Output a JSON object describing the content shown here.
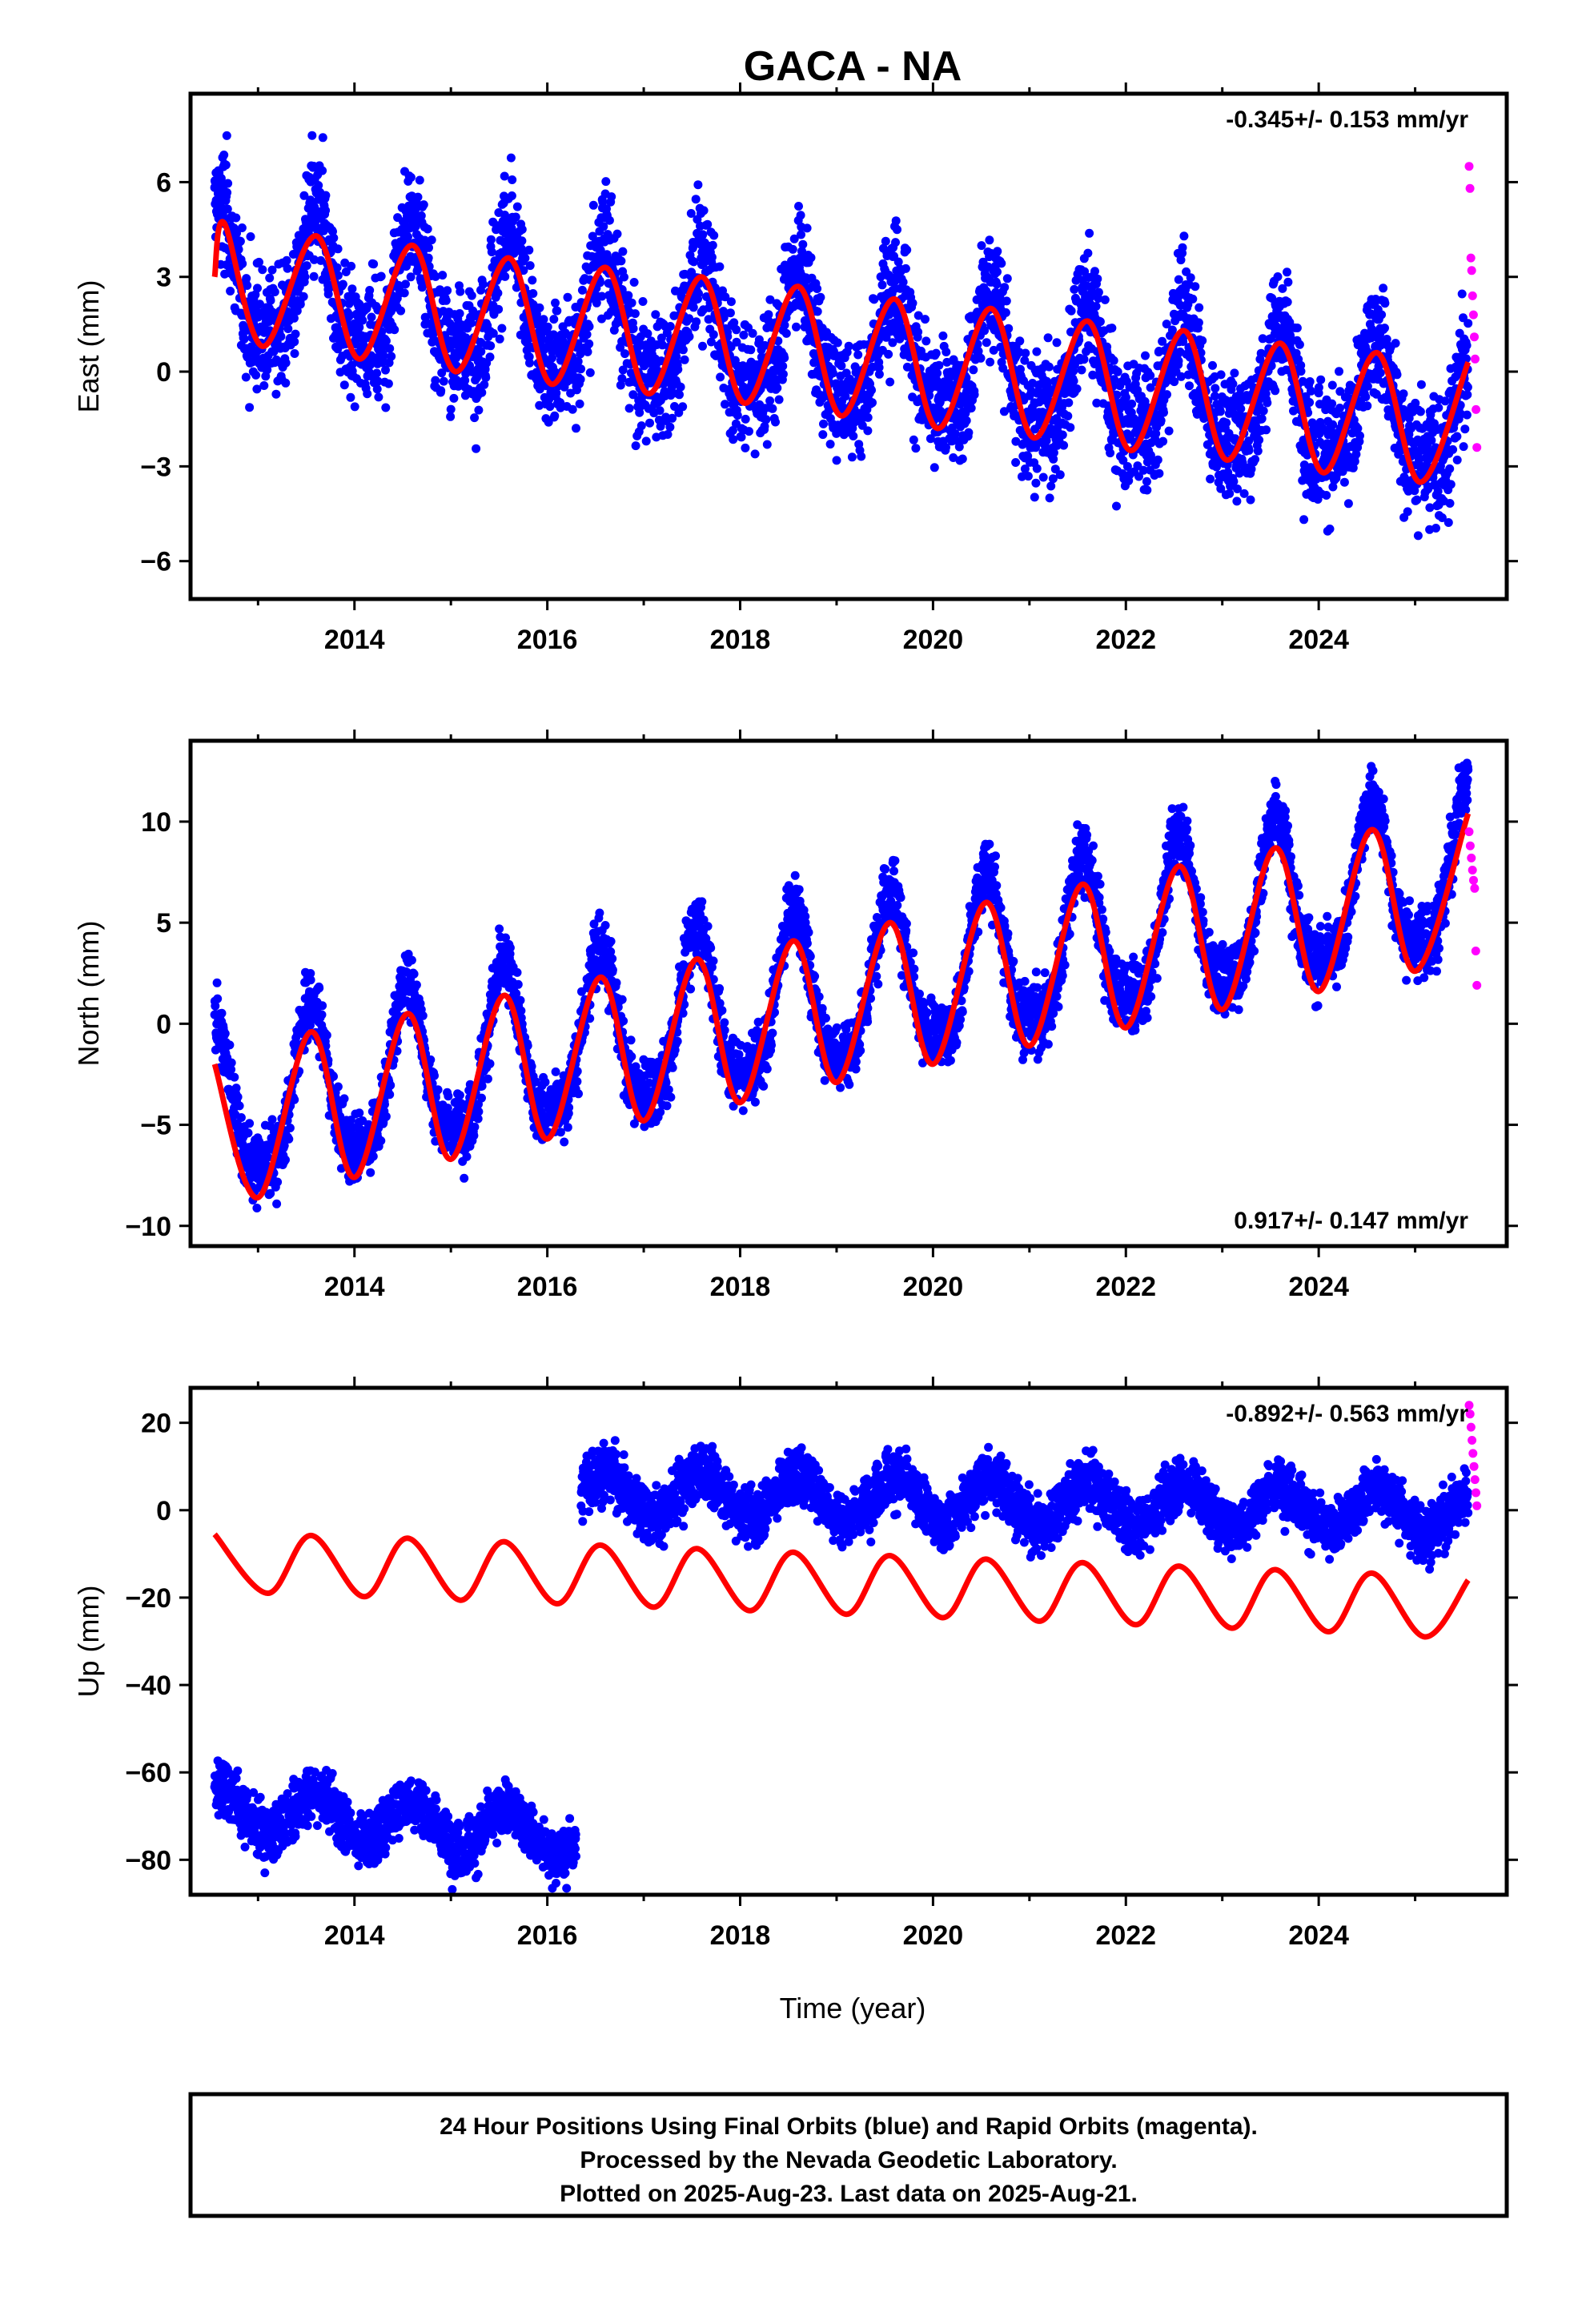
{
  "title": "GACA - NA",
  "xlabel": "Time (year)",
  "footer": {
    "line1": "24 Hour Positions Using Final Orbits (blue) and Rapid Orbits (magenta).",
    "line2": "Processed by the Nevada Geodetic Laboratory.",
    "line3": "Plotted on 2025-Aug-23. Last data on 2025-Aug-21."
  },
  "colors": {
    "final": "#0000ff",
    "rapid": "#ff00ff",
    "model": "#ff0000",
    "frame": "#000000"
  },
  "chart_data": [
    {
      "type": "scatter",
      "component": "east",
      "ylabel": "East (mm)",
      "rate": "-0.345+/- 0.153 mm/yr",
      "rate_position": "top-right",
      "xlim": [
        2012.3,
        2025.95
      ],
      "ylim": [
        -7.2,
        8.8
      ],
      "x_ticks": [
        2014,
        2016,
        2018,
        2020,
        2022,
        2024
      ],
      "x_tick_labels": [
        "2014",
        "2016",
        "2018",
        "2020",
        "2022",
        "2024"
      ],
      "y_ticks": [
        -6,
        -3,
        0,
        3,
        6
      ],
      "y_tick_labels": [
        "−6",
        "−3",
        "0",
        "3",
        "6"
      ],
      "final_span": [
        2012.55,
        2025.55
      ],
      "rapid_span": [
        2025.56,
        2025.64
      ],
      "rapid_values": [
        6.5,
        5.8,
        3.6,
        3.2,
        2.4,
        1.8,
        1.1,
        0.4,
        -1.2,
        -2.4
      ],
      "model": {
        "offset": 2.9,
        "trend": -0.345,
        "annual_amp": 1.9,
        "annual_peak": 0.6,
        "semiannual_amp": 0.6,
        "semiannual_peak": 0.6,
        "noise": 1.4
      },
      "model_series": [
        {
          "x": 2012.55,
          "y": 3.0
        },
        {
          "x": 2012.65,
          "y": 4.7
        },
        {
          "x": 2013.05,
          "y": 0.8
        },
        {
          "x": 2013.6,
          "y": 4.3
        },
        {
          "x": 2014.05,
          "y": 0.4
        },
        {
          "x": 2014.6,
          "y": 4.0
        },
        {
          "x": 2015.05,
          "y": 0.0
        },
        {
          "x": 2015.6,
          "y": 3.6
        },
        {
          "x": 2016.05,
          "y": -0.4
        },
        {
          "x": 2016.6,
          "y": 3.3
        },
        {
          "x": 2017.05,
          "y": -0.7
        },
        {
          "x": 2017.6,
          "y": 3.0
        },
        {
          "x": 2018.05,
          "y": -1.0
        },
        {
          "x": 2018.6,
          "y": 2.7
        },
        {
          "x": 2019.05,
          "y": -1.4
        },
        {
          "x": 2019.6,
          "y": 2.3
        },
        {
          "x": 2020.05,
          "y": -1.8
        },
        {
          "x": 2020.6,
          "y": 2.0
        },
        {
          "x": 2021.05,
          "y": -2.1
        },
        {
          "x": 2021.6,
          "y": 1.6
        },
        {
          "x": 2022.05,
          "y": -2.5
        },
        {
          "x": 2022.6,
          "y": 1.3
        },
        {
          "x": 2023.05,
          "y": -2.8
        },
        {
          "x": 2023.6,
          "y": 0.9
        },
        {
          "x": 2024.05,
          "y": -3.2
        },
        {
          "x": 2024.6,
          "y": 0.6
        },
        {
          "x": 2025.05,
          "y": -3.5
        },
        {
          "x": 2025.55,
          "y": 0.3
        }
      ]
    },
    {
      "type": "scatter",
      "component": "north",
      "ylabel": "North (mm)",
      "rate": "0.917+/- 0.147 mm/yr",
      "rate_position": "bottom-right",
      "xlim": [
        2012.3,
        2025.95
      ],
      "ylim": [
        -11,
        14
      ],
      "x_ticks": [
        2014,
        2016,
        2018,
        2020,
        2022,
        2024
      ],
      "x_tick_labels": [
        "2014",
        "2016",
        "2018",
        "2020",
        "2022",
        "2024"
      ],
      "y_ticks": [
        -10,
        -5,
        0,
        5,
        10
      ],
      "y_tick_labels": [
        "−10",
        "−5",
        "0",
        "5",
        "10"
      ],
      "final_span": [
        2012.55,
        2025.55
      ],
      "rapid_span": [
        2025.56,
        2025.64
      ],
      "rapid_values": [
        9.5,
        8.8,
        8.2,
        7.6,
        7.1,
        6.7,
        3.6,
        1.9
      ],
      "model": {
        "offset": -4.5,
        "trend": 0.917,
        "annual_amp": 3.8,
        "annual_peak": 0.55,
        "semiannual_amp": 0.9,
        "semiannual_peak": 0.55,
        "noise": 1.2
      },
      "model_series": [
        {
          "x": 2012.55,
          "y": -2.0
        },
        {
          "x": 2013.0,
          "y": -8.6
        },
        {
          "x": 2013.55,
          "y": -0.4
        },
        {
          "x": 2014.0,
          "y": -7.6
        },
        {
          "x": 2014.55,
          "y": 0.5
        },
        {
          "x": 2015.0,
          "y": -6.7
        },
        {
          "x": 2015.55,
          "y": 1.4
        },
        {
          "x": 2016.0,
          "y": -5.7
        },
        {
          "x": 2016.55,
          "y": 2.3
        },
        {
          "x": 2017.0,
          "y": -4.8
        },
        {
          "x": 2017.55,
          "y": 3.2
        },
        {
          "x": 2018.0,
          "y": -3.9
        },
        {
          "x": 2018.55,
          "y": 4.1
        },
        {
          "x": 2019.0,
          "y": -2.9
        },
        {
          "x": 2019.55,
          "y": 5.0
        },
        {
          "x": 2020.0,
          "y": -2.0
        },
        {
          "x": 2020.55,
          "y": 6.0
        },
        {
          "x": 2021.0,
          "y": -1.1
        },
        {
          "x": 2021.55,
          "y": 6.9
        },
        {
          "x": 2022.0,
          "y": -0.2
        },
        {
          "x": 2022.55,
          "y": 7.8
        },
        {
          "x": 2023.0,
          "y": 0.7
        },
        {
          "x": 2023.55,
          "y": 8.7
        },
        {
          "x": 2024.0,
          "y": 1.6
        },
        {
          "x": 2024.55,
          "y": 9.6
        },
        {
          "x": 2025.0,
          "y": 2.6
        },
        {
          "x": 2025.55,
          "y": 10.4
        }
      ]
    },
    {
      "type": "scatter",
      "component": "up",
      "ylabel": "Up (mm)",
      "rate": "-0.892+/- 0.563 mm/yr",
      "rate_position": "top-right",
      "xlim": [
        2012.3,
        2025.95
      ],
      "ylim": [
        -88,
        28
      ],
      "x_ticks": [
        2014,
        2016,
        2018,
        2020,
        2022,
        2024
      ],
      "x_tick_labels": [
        "2014",
        "2016",
        "2018",
        "2020",
        "2022",
        "2024"
      ],
      "y_ticks": [
        -80,
        -60,
        -40,
        -20,
        0,
        20
      ],
      "y_tick_labels": [
        "−80",
        "−60",
        "−40",
        "−20",
        "0",
        "20"
      ],
      "final_segments": [
        {
          "span": [
            2012.55,
            2016.3
          ],
          "offset": -68,
          "trend": -1.8,
          "annual_amp": 5,
          "annual_peak": 0.6,
          "noise": 4.5
        },
        {
          "span": [
            2016.35,
            2025.55
          ],
          "offset": 6,
          "trend": -0.5,
          "annual_amp": 5,
          "annual_peak": 0.6,
          "noise": 4.5
        }
      ],
      "rapid_span": [
        2025.56,
        2025.64
      ],
      "rapid_values": [
        24,
        22,
        19,
        16,
        13,
        10,
        7,
        4,
        1
      ],
      "model_series": [
        {
          "x": 2012.55,
          "y": -5.5
        },
        {
          "x": 2013.1,
          "y": -19.0
        },
        {
          "x": 2013.55,
          "y": -5.8
        },
        {
          "x": 2014.1,
          "y": -19.8
        },
        {
          "x": 2014.55,
          "y": -6.4
        },
        {
          "x": 2015.1,
          "y": -20.6
        },
        {
          "x": 2015.55,
          "y": -7.2
        },
        {
          "x": 2016.1,
          "y": -21.4
        },
        {
          "x": 2016.55,
          "y": -8.0
        },
        {
          "x": 2017.1,
          "y": -22.2
        },
        {
          "x": 2017.55,
          "y": -8.8
        },
        {
          "x": 2018.1,
          "y": -23.0
        },
        {
          "x": 2018.55,
          "y": -9.6
        },
        {
          "x": 2019.1,
          "y": -23.8
        },
        {
          "x": 2019.55,
          "y": -10.4
        },
        {
          "x": 2020.1,
          "y": -24.6
        },
        {
          "x": 2020.55,
          "y": -11.2
        },
        {
          "x": 2021.1,
          "y": -25.4
        },
        {
          "x": 2021.55,
          "y": -12.0
        },
        {
          "x": 2022.1,
          "y": -26.2
        },
        {
          "x": 2022.55,
          "y": -12.8
        },
        {
          "x": 2023.1,
          "y": -27.0
        },
        {
          "x": 2023.55,
          "y": -13.6
        },
        {
          "x": 2024.1,
          "y": -27.8
        },
        {
          "x": 2024.55,
          "y": -14.4
        },
        {
          "x": 2025.1,
          "y": -29.0
        },
        {
          "x": 2025.55,
          "y": -16.0
        }
      ]
    }
  ]
}
